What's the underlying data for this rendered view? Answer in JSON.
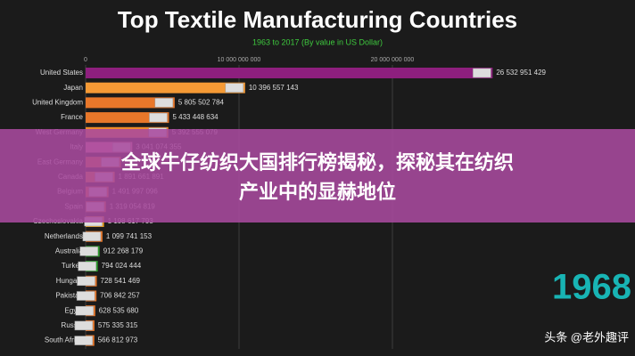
{
  "chart_data": {
    "type": "bar",
    "orientation": "horizontal",
    "title": "Top Textile Manufacturing Countries",
    "subtitle": "1963 to 2017 (By value in US Dollar)",
    "year": "1968",
    "categories": [
      "United States",
      "Japan",
      "United Kingdom",
      "France",
      "West Germany",
      "Italy",
      "East Germany",
      "Canada",
      "Belgium",
      "Spain",
      "Czechoslovakia",
      "Netherlands",
      "Australia",
      "Turkey",
      "Hungary",
      "Pakistan",
      "Egypt",
      "Russia",
      "South Africa"
    ],
    "values": [
      26532951429,
      10396557143,
      5805502784,
      5433448634,
      5392555079,
      3041074355,
      2300000000,
      1891661891,
      1491997096,
      1319054819,
      1198617793,
      1099741153,
      912268179,
      794024444,
      728541469,
      706842257,
      628535680,
      575335315,
      566812973
    ],
    "value_labels": [
      "26 532 951 429",
      "10 396 557 143",
      "5 805 502 784",
      "5 433 448 634",
      "5 392 555 079",
      "3 041 074 355",
      null,
      "1 891 661 891",
      "1 491 997 096",
      "1 319 054 819",
      "1 198 617 793",
      "1 099 741 153",
      "912 268 179",
      "794 024 444",
      "728 541 469",
      "706 842 257",
      "628 535 680",
      "575 335 315",
      "566 812 973"
    ],
    "colors": [
      "#8e1f7e",
      "#f59a35",
      "#e8772a",
      "#e8772a",
      "#f08a2a",
      "#e88aa0",
      "#e8772a",
      "#f08a2a",
      "#e8772a",
      "#e8772a",
      "#e8a020",
      "#e8772a",
      "#2e9e2e",
      "#2e9e2e",
      "#e8772a",
      "#e8772a",
      "#e8772a",
      "#e8772a",
      "#e8772a"
    ],
    "xlim": [
      0,
      30000000000
    ],
    "xticks": [
      0,
      {
        "value": 10000000000,
        "label": "10 000 000 000"
      },
      {
        "value": 20000000000,
        "label": "20 000 000 000"
      }
    ],
    "grid": true
  },
  "overlay": {
    "lines": [
      "全球牛仔纺织大国排行榜揭秘，探秘其在纺织",
      "产业中的显赫地位"
    ]
  },
  "watermark": "头条 @老外趣评"
}
